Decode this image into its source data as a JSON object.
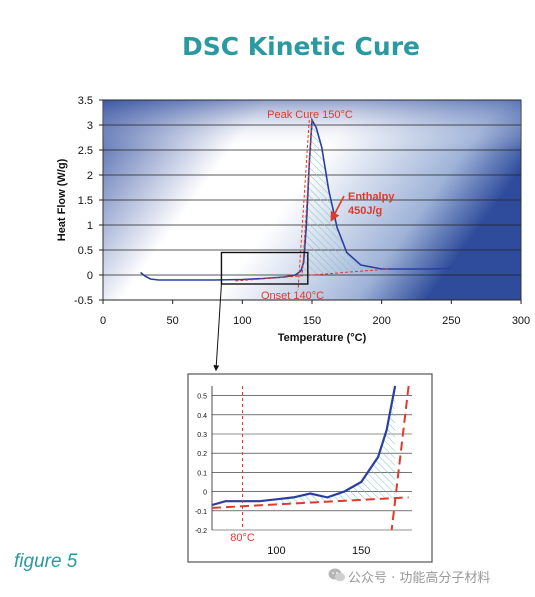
{
  "title": "DSC Kinetic Cure",
  "figure_label": "figure 5",
  "watermark": "公众号 · 功能高分子材料",
  "colors": {
    "accent": "#2a9aa0",
    "curve": "#2b3fa0",
    "annotation_red": "#e03a2a",
    "hatch": "#7fc4c4",
    "plot_bg_dark": "#4a66b0"
  },
  "chart_data": [
    {
      "type": "line",
      "xlabel": "Temperature (°C)",
      "ylabel": "Heat Flow (W/g)",
      "xlim": [
        0,
        300
      ],
      "ylim": [
        -0.5,
        3.5
      ],
      "xticks": [
        "0",
        "50",
        "100",
        "150",
        "200",
        "250",
        "300"
      ],
      "yticks": [
        "-0.5",
        "0",
        "0.5",
        "1",
        "1.5",
        "2",
        "2.5",
        "3",
        "3.5"
      ],
      "grid": "horizontal",
      "series": [
        {
          "x": [
            27,
            30,
            34,
            40,
            60,
            80,
            100,
            115,
            130,
            138,
            142,
            144,
            146,
            148,
            150,
            153,
            157,
            162,
            168,
            175,
            185,
            200,
            220,
            235,
            250
          ],
          "y": [
            0.05,
            -0.02,
            -0.08,
            -0.1,
            -0.1,
            -0.1,
            -0.09,
            -0.07,
            -0.04,
            0.0,
            0.08,
            0.25,
            1.0,
            2.2,
            3.1,
            2.95,
            2.55,
            1.7,
            0.95,
            0.45,
            0.2,
            0.12,
            0.12,
            0.12,
            0.13
          ]
        }
      ],
      "annotations": [
        {
          "text": "Peak Cure 150°C",
          "x": 150,
          "y": 3.1
        },
        {
          "text": "Enthalpy",
          "x": 175,
          "y": 1.6
        },
        {
          "text": "450J/g",
          "x": 175,
          "y": 1.3
        },
        {
          "text": "Onset 140°C",
          "x": 140,
          "y": -0.35
        }
      ],
      "peak_temperature": 150,
      "onset_temperature": 140,
      "enthalpy": "450J/g"
    },
    {
      "type": "line",
      "xlim": [
        62,
        180
      ],
      "ylim": [
        -0.2,
        0.55
      ],
      "xticks": [
        "100",
        "150"
      ],
      "yticks": [
        "-0.2",
        "-0.1",
        "0",
        "0.1",
        "0.2",
        "0.3",
        "0.4",
        "0.5"
      ],
      "grid": "horizontal",
      "series": [
        {
          "x": [
            62,
            70,
            80,
            90,
            100,
            110,
            120,
            130,
            140,
            150,
            160,
            165,
            170
          ],
          "y": [
            -0.07,
            -0.05,
            -0.05,
            -0.05,
            -0.04,
            -0.03,
            -0.01,
            -0.03,
            0.0,
            0.05,
            0.18,
            0.32,
            0.55
          ]
        }
      ],
      "annotations": [
        {
          "text": "80°C",
          "x": 80,
          "y": -0.2
        }
      ]
    }
  ]
}
